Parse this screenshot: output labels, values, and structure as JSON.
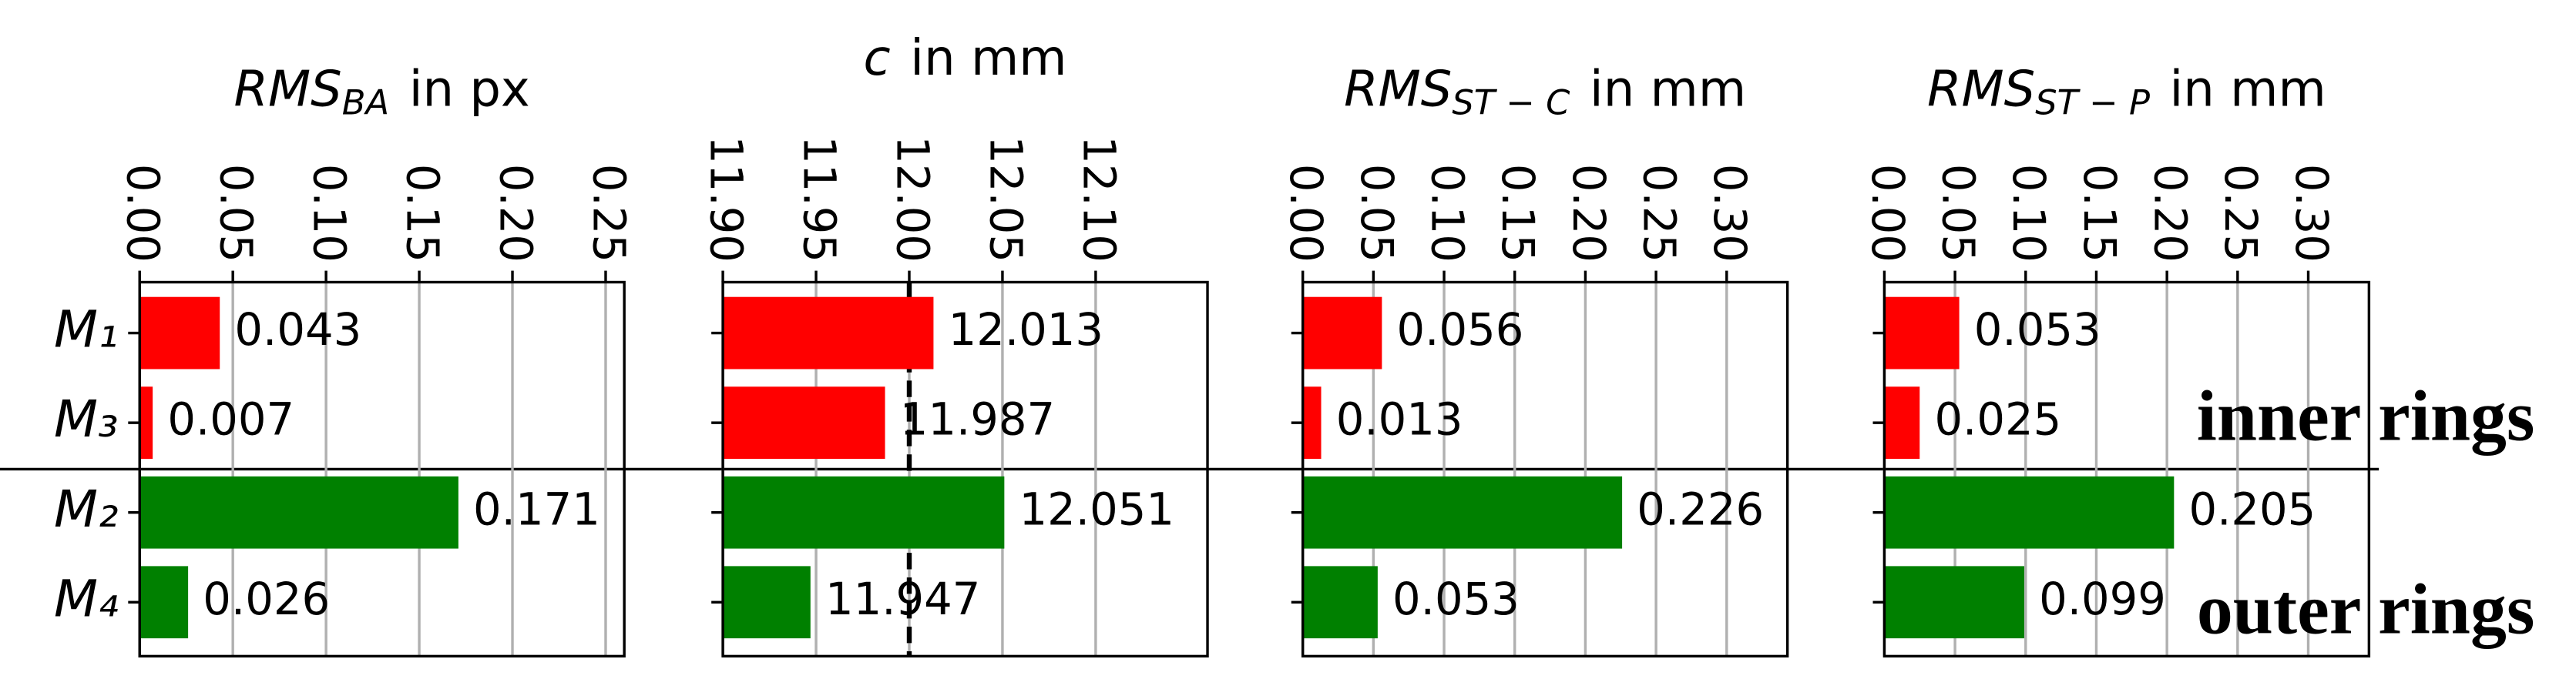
{
  "chart_data": [
    {
      "type": "bar",
      "orientation": "horizontal",
      "title": {
        "base": "RMS",
        "sub": "BA",
        "rest": "in px"
      },
      "categories": [
        "M₁",
        "M₃",
        "M₂",
        "M₄"
      ],
      "values": [
        0.043,
        0.007,
        0.171,
        0.026
      ],
      "colors": [
        "#ff0000",
        "#ff0000",
        "#008000",
        "#008000"
      ],
      "xlim": [
        0,
        0.26
      ],
      "xticks": [
        {
          "value": 0,
          "label": "0.00"
        },
        {
          "value": 0.05,
          "label": "0.05"
        },
        {
          "value": 0.1,
          "label": "0.10"
        },
        {
          "value": 0.15,
          "label": "0.15"
        },
        {
          "value": 0.2,
          "label": "0.20"
        },
        {
          "value": 0.25,
          "label": "0.25"
        }
      ],
      "grid": true
    },
    {
      "type": "bar",
      "orientation": "horizontal",
      "title": {
        "base": "c",
        "rest": "in mm"
      },
      "values": [
        12.013,
        11.987,
        12.051,
        11.947
      ],
      "colors": [
        "#ff0000",
        "#ff0000",
        "#008000",
        "#008000"
      ],
      "xlim": [
        11.9,
        12.16
      ],
      "xticks": [
        {
          "value": 11.9,
          "label": "11.90"
        },
        11.95,
        {
          "value": 12,
          "label": "12.00"
        },
        12.05,
        {
          "value": 12.1,
          "label": "12.10"
        }
      ],
      "reference_line": 12,
      "grid": true
    },
    {
      "type": "bar",
      "orientation": "horizontal",
      "title": {
        "base": "RMS",
        "sub": "ST − C",
        "rest": "in mm"
      },
      "values": [
        0.056,
        0.013,
        0.226,
        0.053
      ],
      "colors": [
        "#ff0000",
        "#ff0000",
        "#008000",
        "#008000"
      ],
      "xlim": [
        0,
        0.343
      ],
      "xticks": [
        {
          "value": 0,
          "label": "0.00"
        },
        {
          "value": 0.05,
          "label": "0.05"
        },
        {
          "value": 0.1,
          "label": "0.10"
        },
        {
          "value": 0.15,
          "label": "0.15"
        },
        {
          "value": 0.2,
          "label": "0.20"
        },
        {
          "value": 0.25,
          "label": "0.25"
        },
        {
          "value": 0.3,
          "label": "0.30"
        }
      ],
      "grid": true
    },
    {
      "type": "bar",
      "orientation": "horizontal",
      "title": {
        "base": "RMS",
        "sub": "ST − P",
        "rest": "in mm"
      },
      "values": [
        0.053,
        0.025,
        0.205,
        0.099
      ],
      "colors": [
        "#ff0000",
        "#ff0000",
        "#008000",
        "#008000"
      ],
      "xlim": [
        0,
        0.343
      ],
      "xticks": [
        {
          "value": 0,
          "label": "0.00"
        },
        {
          "value": 0.05,
          "label": "0.05"
        },
        {
          "value": 0.1,
          "label": "0.10"
        },
        {
          "value": 0.15,
          "label": "0.15"
        },
        {
          "value": 0.2,
          "label": "0.20"
        },
        {
          "value": 0.25,
          "label": "0.25"
        },
        {
          "value": 0.3,
          "label": "0.30"
        }
      ],
      "annotations": [
        {
          "text": "inner rings",
          "color": "#ff0000"
        },
        {
          "text": "outer rings",
          "color": "#006400"
        }
      ],
      "grid": true
    }
  ]
}
